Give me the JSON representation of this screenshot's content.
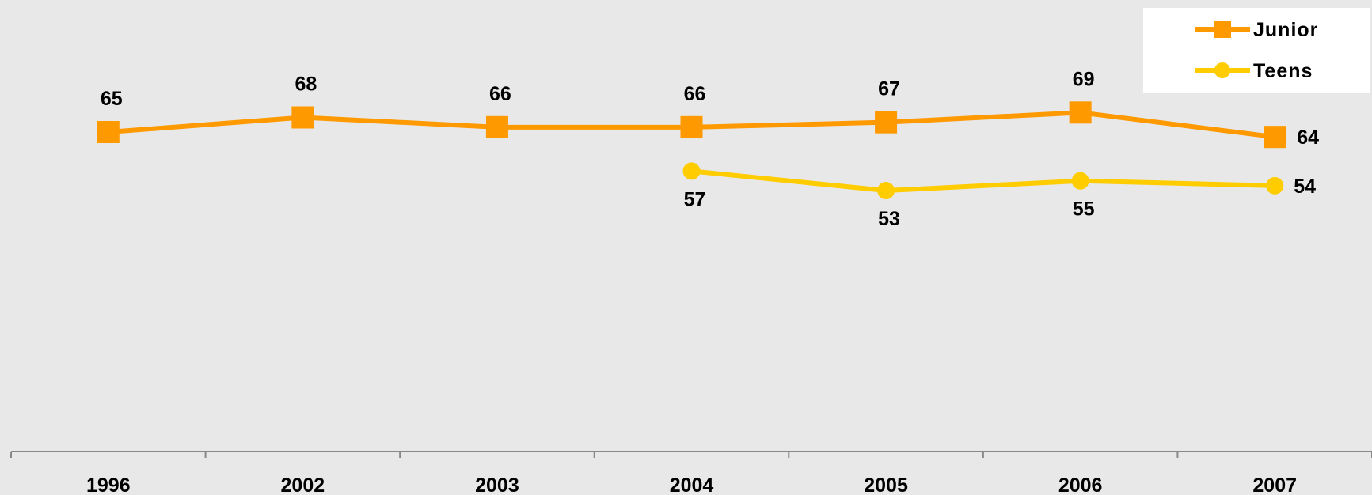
{
  "chart_data": {
    "type": "line",
    "categories": [
      "1996",
      "2002",
      "2003",
      "2004",
      "2005",
      "2006",
      "2007"
    ],
    "series": [
      {
        "name": "Junior",
        "color": "#ff9900",
        "marker": "square",
        "values": [
          65,
          68,
          66,
          66,
          67,
          69,
          64
        ]
      },
      {
        "name": "Teens",
        "color": "#ffcc00",
        "marker": "circle",
        "values": [
          null,
          null,
          null,
          57,
          53,
          55,
          54
        ]
      }
    ],
    "title": "",
    "xlabel": "",
    "ylabel": "",
    "ylim": [
      0,
      95
    ],
    "grid": false,
    "legend_position": "top-right"
  }
}
